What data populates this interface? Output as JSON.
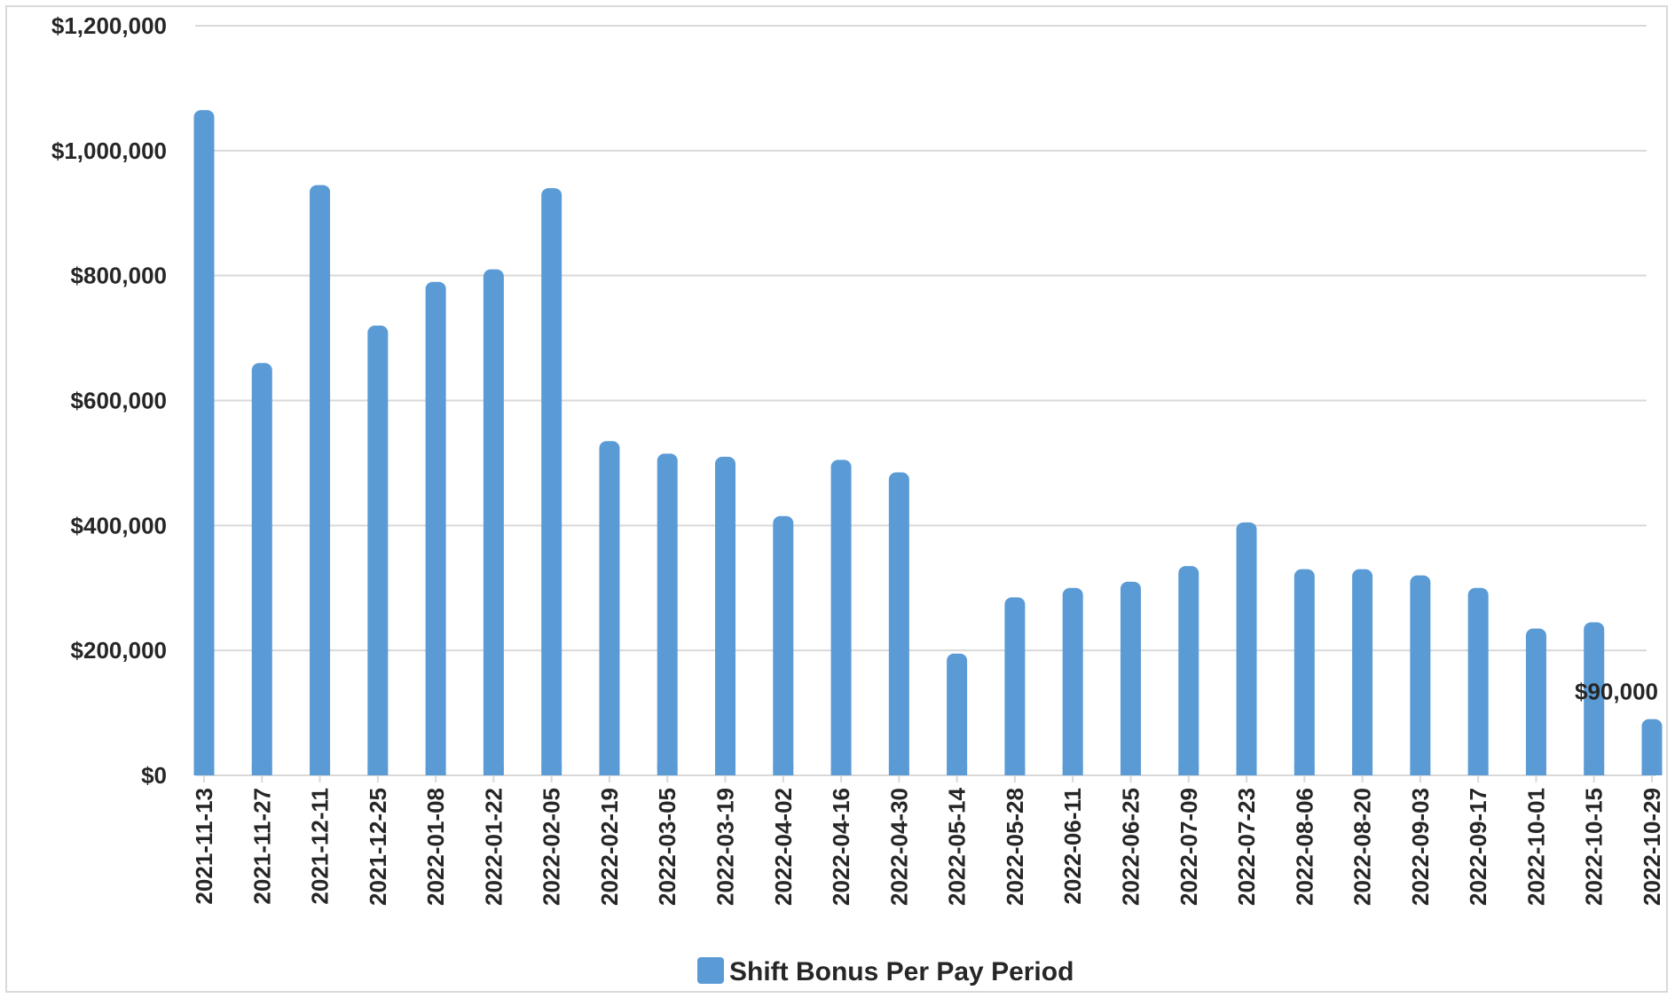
{
  "chart_data": {
    "type": "bar",
    "categories": [
      "2021-11-13",
      "2021-11-27",
      "2021-12-11",
      "2021-12-25",
      "2022-01-08",
      "2022-01-22",
      "2022-02-05",
      "2022-02-19",
      "2022-03-05",
      "2022-03-19",
      "2022-04-02",
      "2022-04-16",
      "2022-04-30",
      "2022-05-14",
      "2022-05-28",
      "2022-06-11",
      "2022-06-25",
      "2022-07-09",
      "2022-07-23",
      "2022-08-06",
      "2022-08-20",
      "2022-09-03",
      "2022-09-17",
      "2022-10-01",
      "2022-10-15",
      "2022-10-29"
    ],
    "series": [
      {
        "name": "Shift Bonus Per Pay Period",
        "values": [
          1065000,
          660000,
          945000,
          720000,
          790000,
          810000,
          940000,
          535000,
          515000,
          510000,
          415000,
          505000,
          485000,
          195000,
          285000,
          300000,
          310000,
          335000,
          405000,
          330000,
          330000,
          320000,
          300000,
          235000,
          245000,
          90000
        ],
        "color": "#5b9bd5"
      }
    ],
    "ylim": [
      0,
      1200000
    ],
    "yticks": [
      "$0",
      "$200,000",
      "$400,000",
      "$600,000",
      "$800,000",
      "$1,000,000",
      "$1,200,000"
    ],
    "ytick_values": [
      0,
      200000,
      400000,
      600000,
      800000,
      1000000,
      1200000
    ],
    "data_labels": [
      {
        "index": 25,
        "text": "$90,000"
      }
    ],
    "grid": true,
    "legend_position": "bottom",
    "title": "",
    "xlabel": "",
    "ylabel": ""
  },
  "colors": {
    "bar": "#5b9bd5",
    "grid": "#d9d9d9",
    "text": "#262626"
  }
}
